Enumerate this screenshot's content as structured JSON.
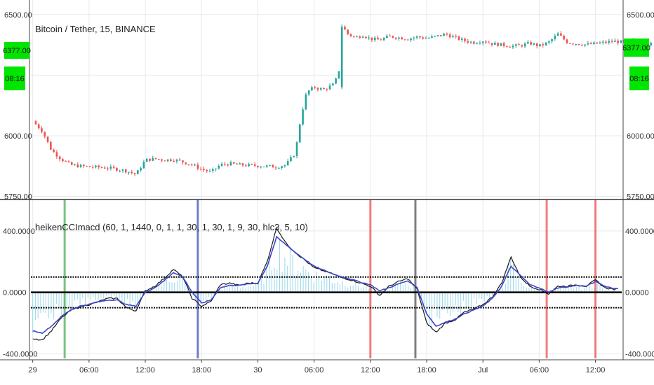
{
  "chart_data": [
    {
      "type": "candlestick",
      "title": "Bitcoin / Tether, 15, BINANCE",
      "y_ticks": [
        "6500.00",
        "6000.00",
        "5750.00"
      ],
      "y_tick_values": [
        6500,
        6000,
        5750
      ],
      "ylim": [
        5740,
        6560
      ],
      "price_badge": "6377.00",
      "price_badge_value": 6377,
      "timer_badge": "08:16",
      "timer_badge_right": "08:16",
      "up_color": "#26a69a",
      "down_color": "#ef5350",
      "badge_color": "#00e600",
      "grid": true,
      "close_path": [
        [
          0,
          6060
        ],
        [
          5,
          6020
        ],
        [
          10,
          5940
        ],
        [
          15,
          5905
        ],
        [
          20,
          5880
        ],
        [
          25,
          5875
        ],
        [
          30,
          5872
        ],
        [
          35,
          5870
        ],
        [
          40,
          5868
        ],
        [
          45,
          5862
        ],
        [
          50,
          5855
        ],
        [
          55,
          5840
        ],
        [
          60,
          5900
        ],
        [
          65,
          5905
        ],
        [
          70,
          5900
        ],
        [
          75,
          5902
        ],
        [
          80,
          5892
        ],
        [
          85,
          5880
        ],
        [
          90,
          5862
        ],
        [
          95,
          5850
        ],
        [
          100,
          5880
        ],
        [
          105,
          5885
        ],
        [
          110,
          5880
        ],
        [
          115,
          5878
        ],
        [
          120,
          5876
        ],
        [
          125,
          5874
        ],
        [
          130,
          5872
        ],
        [
          135,
          5880
        ],
        [
          140,
          5930
        ],
        [
          143,
          6080
        ],
        [
          146,
          6180
        ],
        [
          150,
          6200
        ],
        [
          155,
          6190
        ],
        [
          160,
          6210
        ],
        [
          163,
          6250
        ],
        [
          165,
          6450
        ],
        [
          168,
          6420
        ],
        [
          172,
          6405
        ],
        [
          176,
          6415
        ],
        [
          180,
          6400
        ],
        [
          185,
          6395
        ],
        [
          190,
          6410
        ],
        [
          195,
          6405
        ],
        [
          200,
          6400
        ],
        [
          205,
          6408
        ],
        [
          210,
          6402
        ],
        [
          215,
          6410
        ],
        [
          220,
          6420
        ],
        [
          225,
          6405
        ],
        [
          230,
          6392
        ],
        [
          235,
          6385
        ],
        [
          240,
          6392
        ],
        [
          245,
          6380
        ],
        [
          250,
          6375
        ],
        [
          255,
          6370
        ],
        [
          260,
          6372
        ],
        [
          265,
          6382
        ],
        [
          270,
          6370
        ],
        [
          275,
          6385
        ],
        [
          280,
          6420
        ],
        [
          285,
          6385
        ],
        [
          290,
          6380
        ],
        [
          295,
          6376
        ],
        [
          300,
          6380
        ],
        [
          305,
          6385
        ],
        [
          310,
          6390
        ],
        [
          315,
          6385
        ],
        [
          320,
          6390
        ],
        [
          325,
          6380
        ],
        [
          330,
          6377
        ]
      ]
    },
    {
      "type": "line",
      "title": "heikenCCImacd (60, 1, 1440, 0, 1, 1, 30, 1, 30, 1, 9, 30, hlc3, 5, 10)",
      "y_ticks": [
        "400.0000",
        "0.0000",
        "-400.0000"
      ],
      "y_tick_values": [
        400,
        0,
        -400
      ],
      "ylim": [
        -430,
        600
      ],
      "levels": [
        100,
        0,
        -100
      ],
      "x_ticks": [
        "29",
        "06:00",
        "12:00",
        "18:00",
        "30",
        "06:00",
        "12:00",
        "18:00",
        "Jul",
        "06:00",
        "12:00"
      ],
      "x_tick_positions": [
        0,
        30,
        60,
        90,
        120,
        150,
        180,
        210,
        240,
        270,
        300
      ],
      "xlim": [
        -1,
        314
      ],
      "vlines": [
        {
          "x": 17,
          "color": "#4caf50"
        },
        {
          "x": 88,
          "color": "#3f51b5"
        },
        {
          "x": 180,
          "color": "#ef5350"
        },
        {
          "x": 204,
          "color": "#555555"
        },
        {
          "x": 274,
          "color": "#ef5350"
        },
        {
          "x": 300,
          "color": "#ef5350"
        }
      ],
      "series": [
        {
          "color": "#1a1a1a",
          "points": [
            [
              0,
              -300
            ],
            [
              5,
              -310
            ],
            [
              10,
              -250
            ],
            [
              15,
              -170
            ],
            [
              20,
              -120
            ],
            [
              25,
              -95
            ],
            [
              30,
              -80
            ],
            [
              35,
              -60
            ],
            [
              40,
              -40
            ],
            [
              45,
              -40
            ],
            [
              50,
              -100
            ],
            [
              55,
              -120
            ],
            [
              60,
              10
            ],
            [
              65,
              40
            ],
            [
              70,
              90
            ],
            [
              75,
              150
            ],
            [
              80,
              100
            ],
            [
              85,
              -40
            ],
            [
              90,
              -90
            ],
            [
              95,
              -60
            ],
            [
              100,
              50
            ],
            [
              105,
              60
            ],
            [
              110,
              45
            ],
            [
              115,
              60
            ],
            [
              120,
              60
            ],
            [
              125,
              200
            ],
            [
              130,
              420
            ],
            [
              135,
              320
            ],
            [
              140,
              260
            ],
            [
              145,
              210
            ],
            [
              150,
              160
            ],
            [
              155,
              140
            ],
            [
              160,
              120
            ],
            [
              165,
              95
            ],
            [
              170,
              80
            ],
            [
              175,
              60
            ],
            [
              180,
              40
            ],
            [
              185,
              -20
            ],
            [
              190,
              40
            ],
            [
              195,
              70
            ],
            [
              200,
              90
            ],
            [
              205,
              20
            ],
            [
              210,
              -200
            ],
            [
              215,
              -260
            ],
            [
              220,
              -200
            ],
            [
              225,
              -180
            ],
            [
              230,
              -130
            ],
            [
              235,
              -110
            ],
            [
              240,
              -80
            ],
            [
              245,
              -30
            ],
            [
              250,
              60
            ],
            [
              255,
              230
            ],
            [
              260,
              100
            ],
            [
              265,
              40
            ],
            [
              270,
              20
            ],
            [
              275,
              -10
            ],
            [
              280,
              40
            ],
            [
              285,
              40
            ],
            [
              290,
              50
            ],
            [
              295,
              40
            ],
            [
              300,
              80
            ],
            [
              305,
              30
            ],
            [
              310,
              20
            ]
          ]
        },
        {
          "color": "#3d46c9",
          "points": [
            [
              0,
              -250
            ],
            [
              5,
              -265
            ],
            [
              10,
              -220
            ],
            [
              15,
              -160
            ],
            [
              20,
              -115
            ],
            [
              25,
              -90
            ],
            [
              30,
              -78
            ],
            [
              35,
              -62
            ],
            [
              40,
              -50
            ],
            [
              45,
              -50
            ],
            [
              50,
              -80
            ],
            [
              55,
              -90
            ],
            [
              60,
              0
            ],
            [
              65,
              30
            ],
            [
              70,
              75
            ],
            [
              75,
              130
            ],
            [
              80,
              100
            ],
            [
              85,
              0
            ],
            [
              90,
              -70
            ],
            [
              95,
              -50
            ],
            [
              100,
              30
            ],
            [
              105,
              45
            ],
            [
              110,
              45
            ],
            [
              115,
              55
            ],
            [
              120,
              60
            ],
            [
              125,
              170
            ],
            [
              130,
              360
            ],
            [
              135,
              310
            ],
            [
              140,
              260
            ],
            [
              145,
              215
            ],
            [
              150,
              170
            ],
            [
              155,
              145
            ],
            [
              160,
              120
            ],
            [
              165,
              100
            ],
            [
              170,
              85
            ],
            [
              175,
              65
            ],
            [
              180,
              50
            ],
            [
              185,
              10
            ],
            [
              190,
              30
            ],
            [
              195,
              55
            ],
            [
              200,
              75
            ],
            [
              205,
              30
            ],
            [
              210,
              -140
            ],
            [
              215,
              -220
            ],
            [
              220,
              -195
            ],
            [
              225,
              -175
            ],
            [
              230,
              -140
            ],
            [
              235,
              -115
            ],
            [
              240,
              -90
            ],
            [
              245,
              -40
            ],
            [
              250,
              40
            ],
            [
              255,
              170
            ],
            [
              260,
              110
            ],
            [
              265,
              50
            ],
            [
              270,
              30
            ],
            [
              275,
              0
            ],
            [
              280,
              30
            ],
            [
              285,
              35
            ],
            [
              290,
              45
            ],
            [
              295,
              40
            ],
            [
              300,
              70
            ],
            [
              305,
              40
            ],
            [
              310,
              25
            ]
          ]
        }
      ]
    }
  ]
}
